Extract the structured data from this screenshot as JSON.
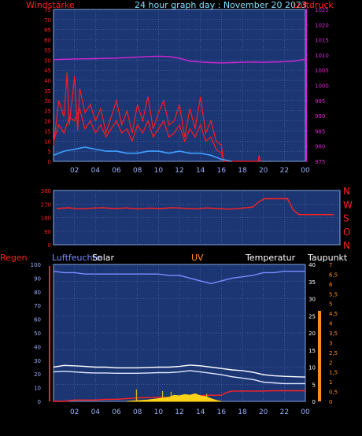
{
  "header": {
    "title": "24 hour graph day : November 20 2023",
    "left_label": "Windstärke",
    "right_label": "Luftdruck"
  },
  "colors": {
    "background": "#000000",
    "plot_bg": "#1c3674",
    "grid": "#5f7fbf",
    "wind_speed": "#ff1a1a",
    "wind_avg": "#3fa0ff",
    "pressure": "#d426d4",
    "direction": "#ff2020",
    "humidity": "#7a8cff",
    "solar": "#ffd21a",
    "uv": "#ff8c1a",
    "temperature": "#ffffff",
    "dewpoint": "#dfe8ff",
    "rain": "#ff2020",
    "title": "#7fe0ff"
  },
  "chart_data": [
    {
      "type": "line",
      "panel": "wind_pressure",
      "x_ticks": [
        "02",
        "04",
        "06",
        "08",
        "10",
        "12",
        "14",
        "16",
        "18",
        "20",
        "22",
        "00"
      ],
      "xlim": [
        0,
        24
      ],
      "left_axis": {
        "label": "Windstärke",
        "ylim": [
          0,
          75
        ],
        "ticks": [
          0,
          5,
          10,
          15,
          20,
          25,
          30,
          35,
          40,
          45,
          50,
          55,
          60,
          65,
          70,
          75
        ]
      },
      "right_axis": {
        "label": "Luftdruck",
        "ylim": [
          975,
          1025
        ],
        "ticks": [
          975,
          980,
          985,
          990,
          995,
          1000,
          1005,
          1010,
          1015,
          1020,
          1025
        ]
      },
      "series": [
        {
          "name": "Luftdruck",
          "axis": "right",
          "x": [
            0,
            2,
            4,
            6,
            8,
            9,
            10,
            11,
            12,
            13,
            14,
            15,
            16,
            17,
            18,
            19,
            20,
            21,
            22,
            23,
            24
          ],
          "y": [
            1008.5,
            1008.7,
            1008.8,
            1009.0,
            1009.3,
            1009.5,
            1009.6,
            1009.5,
            1008.9,
            1008.0,
            1007.7,
            1007.5,
            1007.4,
            1007.5,
            1007.6,
            1007.7,
            1007.6,
            1007.7,
            1007.8,
            1008.0,
            1008.6
          ]
        },
        {
          "name": "Wind gust",
          "axis": "left",
          "x": [
            0,
            0.5,
            1,
            1.3,
            1.5,
            1.8,
            2,
            2.3,
            2.5,
            3,
            3.5,
            4,
            4.5,
            5,
            5.5,
            6,
            6.5,
            7,
            7.5,
            8,
            8.5,
            9,
            9.5,
            10,
            10.5,
            11,
            11.5,
            12,
            12.5,
            13,
            13.5,
            14,
            14.5,
            15,
            15.5,
            16,
            16.2,
            16.5,
            19.5,
            19.6,
            19.7
          ],
          "y": [
            8,
            30,
            22,
            44,
            18,
            32,
            42,
            15,
            36,
            24,
            28,
            20,
            26,
            14,
            22,
            30,
            18,
            25,
            14,
            28,
            20,
            32,
            16,
            24,
            30,
            18,
            20,
            28,
            12,
            26,
            16,
            32,
            14,
            20,
            10,
            8,
            0,
            0,
            0,
            3,
            0
          ]
        },
        {
          "name": "Wind speed",
          "axis": "left",
          "x": [
            0,
            0.5,
            1,
            1.5,
            2,
            2.5,
            3,
            3.5,
            4,
            4.5,
            5,
            5.5,
            6,
            6.5,
            7,
            7.5,
            8,
            8.5,
            9,
            9.5,
            10,
            10.5,
            11,
            11.5,
            12,
            12.5,
            13,
            13.5,
            14,
            14.5,
            15,
            15.5,
            16,
            16.3
          ],
          "y": [
            10,
            18,
            14,
            22,
            20,
            26,
            16,
            20,
            14,
            18,
            12,
            16,
            20,
            14,
            16,
            10,
            18,
            14,
            20,
            12,
            16,
            20,
            12,
            14,
            18,
            10,
            16,
            12,
            18,
            10,
            12,
            6,
            4,
            0
          ]
        },
        {
          "name": "Wind average",
          "axis": "left",
          "x": [
            0,
            1,
            2,
            3,
            4,
            5,
            6,
            7,
            8,
            9,
            10,
            11,
            12,
            13,
            14,
            15,
            16,
            17
          ],
          "y": [
            3,
            5,
            6,
            7,
            6,
            5,
            5,
            4,
            4,
            5,
            5,
            4,
            5,
            4,
            4,
            3,
            1,
            0
          ]
        }
      ]
    },
    {
      "type": "line",
      "panel": "wind_direction",
      "xlim": [
        0,
        24
      ],
      "left_axis": {
        "ylim": [
          0,
          360
        ],
        "ticks": [
          0,
          90,
          180,
          270,
          360
        ]
      },
      "right_axis_labels": [
        "N",
        "W",
        "S",
        "O",
        "N"
      ],
      "series": [
        {
          "name": "Windrichtung",
          "x": [
            0,
            1,
            2,
            3,
            4,
            5,
            6,
            7,
            8,
            9,
            10,
            11,
            12,
            13,
            14,
            15,
            16,
            17,
            17.5,
            18,
            19,
            20,
            20.5,
            21,
            22,
            23,
            24
          ],
          "y": [
            240,
            245,
            238,
            242,
            246,
            240,
            244,
            238,
            243,
            240,
            246,
            242,
            238,
            244,
            240,
            236,
            242,
            250,
            285,
            305,
            305,
            305,
            230,
            200,
            200,
            200,
            200
          ]
        }
      ]
    },
    {
      "type": "line",
      "panel": "climate",
      "x_ticks": [
        "02",
        "04",
        "06",
        "08",
        "10",
        "12",
        "14",
        "16",
        "18",
        "20",
        "22",
        "00"
      ],
      "xlim": [
        0,
        24
      ],
      "labels": {
        "rain": "Regen",
        "humidity": "Luftfeuchte",
        "solar": "Solar",
        "uv": "UV",
        "temperature": "Temperatur",
        "dewpoint": "Taupunkt"
      },
      "humidity_axis": {
        "ylim": [
          0,
          100
        ],
        "ticks": [
          0,
          10,
          20,
          30,
          40,
          50,
          60,
          70,
          80,
          90,
          100
        ]
      },
      "temperature_axis": {
        "ylim": [
          0,
          40
        ],
        "ticks": [
          0,
          5,
          10,
          15,
          20,
          25,
          30,
          35,
          40
        ]
      },
      "uv_axis": {
        "ylim": [
          0,
          7
        ],
        "ticks": [
          "0",
          "0,5",
          "1",
          "1,5",
          "2",
          "2,5",
          "3",
          "3,5",
          "4",
          "4,5",
          "5",
          "5,5",
          "6",
          "6,5",
          "7"
        ]
      },
      "series": [
        {
          "name": "Luftfeuchte",
          "axis": "humidity",
          "x": [
            0,
            1,
            2,
            3,
            4,
            5,
            6,
            7,
            8,
            9,
            10,
            11,
            12,
            13,
            14,
            15,
            16,
            17,
            18,
            19,
            20,
            21,
            22,
            23,
            24
          ],
          "y": [
            95,
            94,
            94,
            93,
            93,
            93,
            93,
            93,
            93,
            93,
            93,
            92,
            92,
            90,
            88,
            86,
            88,
            90,
            91,
            92,
            94,
            94,
            95,
            95,
            95
          ]
        },
        {
          "name": "Temperatur",
          "axis": "temperature",
          "x": [
            0,
            1,
            2,
            3,
            4,
            5,
            6,
            7,
            8,
            9,
            10,
            11,
            12,
            13,
            14,
            15,
            16,
            17,
            18,
            19,
            20,
            21,
            22,
            23,
            24
          ],
          "y": [
            10,
            10.5,
            10.4,
            10.2,
            10.0,
            10.0,
            9.8,
            9.8,
            9.8,
            9.9,
            10.0,
            10.0,
            10.2,
            10.6,
            10.4,
            10.0,
            9.6,
            9.2,
            9.0,
            8.5,
            7.8,
            7.5,
            7.3,
            7.2,
            7.1
          ]
        },
        {
          "name": "Taupunkt",
          "axis": "temperature",
          "x": [
            0,
            1,
            2,
            3,
            4,
            5,
            6,
            7,
            8,
            9,
            10,
            11,
            12,
            13,
            14,
            15,
            16,
            17,
            18,
            19,
            20,
            21,
            22,
            23,
            24
          ],
          "y": [
            8.6,
            8.8,
            8.6,
            8.4,
            8.3,
            8.3,
            8.2,
            8.2,
            8.2,
            8.3,
            8.4,
            8.4,
            8.6,
            9.0,
            8.6,
            8.2,
            7.8,
            7.2,
            6.8,
            6.4,
            5.6,
            5.4,
            5.2,
            5.2,
            5.2
          ]
        },
        {
          "name": "Regen",
          "axis": "temperature",
          "x": [
            0,
            1,
            2,
            3,
            4,
            5,
            6,
            7,
            8,
            9,
            10,
            11,
            12,
            13,
            14,
            15,
            16,
            16.5,
            17,
            18,
            19,
            20,
            21,
            22,
            23,
            24
          ],
          "y": [
            0,
            0,
            0.4,
            0.4,
            0.4,
            0.6,
            0.6,
            0.8,
            1.0,
            1.1,
            1.2,
            1.2,
            1.4,
            1.6,
            1.7,
            1.8,
            1.8,
            2.6,
            3.0,
            3.0,
            3.0,
            3.0,
            3.1,
            3.1,
            3.1,
            3.1
          ]
        },
        {
          "name": "Solar",
          "axis": "temperature",
          "x": [
            7,
            8,
            9,
            10,
            10.5,
            11,
            11.5,
            12,
            12.5,
            13,
            13.5,
            14,
            14.5,
            15,
            15.5,
            16
          ],
          "y": [
            0,
            0.2,
            0.4,
            0.8,
            1.0,
            1.2,
            1.8,
            1.6,
            2.0,
            1.8,
            2.2,
            1.6,
            1.4,
            0.8,
            0.3,
            0
          ]
        },
        {
          "name": "Solar spikes",
          "axis": "temperature",
          "x": [
            7.9,
            10.4,
            11.2,
            14.6
          ],
          "y": [
            3.5,
            3.0,
            2.8,
            2.2
          ]
        }
      ]
    }
  ]
}
